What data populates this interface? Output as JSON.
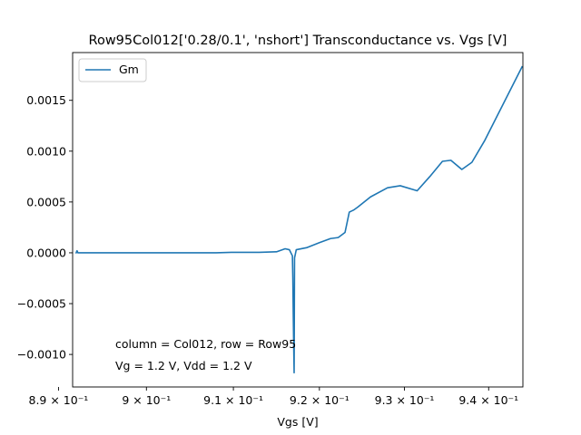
{
  "chart_data": {
    "type": "line",
    "title": "Row95Col012['0.28/0.1', 'nshort'] Transconductance vs. Vgs [V]",
    "xlabel": "Vgs [V]",
    "ylabel": "",
    "xscale": "log",
    "xlim": [
      0.8916,
      0.9441
    ],
    "ylim": [
      -0.00132,
      0.00197
    ],
    "legend_position": "upper left",
    "color": "#1f77b4",
    "x_ticks": [
      {
        "value": 0.89,
        "label": "8.9 × 10⁻¹"
      },
      {
        "value": 0.9,
        "label": "9 × 10⁻¹"
      },
      {
        "value": 0.91,
        "label": "9.1 × 10⁻¹"
      },
      {
        "value": 0.92,
        "label": "9.2 × 10⁻¹"
      },
      {
        "value": 0.93,
        "label": "9.3 × 10⁻¹"
      },
      {
        "value": 0.94,
        "label": "9.4 × 10⁻¹"
      }
    ],
    "y_ticks": [
      {
        "value": -0.001,
        "label": "−0.0010"
      },
      {
        "value": -0.0005,
        "label": "−0.0005"
      },
      {
        "value": 0.0,
        "label": "0.0000"
      },
      {
        "value": 0.0005,
        "label": "0.0005"
      },
      {
        "value": 0.001,
        "label": "0.0010"
      },
      {
        "value": 0.0015,
        "label": "0.0015"
      }
    ],
    "series": [
      {
        "name": "Gm",
        "x": [
          0.892,
          0.8921,
          0.8922,
          0.8925,
          0.895,
          0.898,
          0.9,
          0.905,
          0.908,
          0.91,
          0.913,
          0.915,
          0.916,
          0.9165,
          0.91685,
          0.9169,
          0.91695,
          0.917,
          0.91705,
          0.9171,
          0.9173,
          0.9185,
          0.92,
          0.9213,
          0.9222,
          0.923,
          0.9235,
          0.924,
          0.9245,
          0.926,
          0.928,
          0.9295,
          0.9315,
          0.933,
          0.9345,
          0.9355,
          0.9368,
          0.938,
          0.9395,
          0.944
        ],
        "y": [
          0.0,
          2e-05,
          0.0,
          0.0,
          0.0,
          0.0,
          0.0,
          0.0,
          0.0,
          5e-06,
          5e-06,
          1e-05,
          4e-05,
          3e-05,
          -3e-05,
          -0.00025,
          -0.0006,
          -0.0009,
          -0.00118,
          -5e-05,
          3e-05,
          5e-05,
          0.0001,
          0.00014,
          0.00015,
          0.0002,
          0.0004,
          0.00042,
          0.00045,
          0.00055,
          0.00064,
          0.00066,
          0.00061,
          0.00075,
          0.0009,
          0.00091,
          0.00082,
          0.00089,
          0.0011,
          0.00183
        ]
      }
    ],
    "annotations": [
      "column = Col012, row = Row95",
      "Vg = 1.2 V, Vdd = 1.2 V"
    ]
  }
}
